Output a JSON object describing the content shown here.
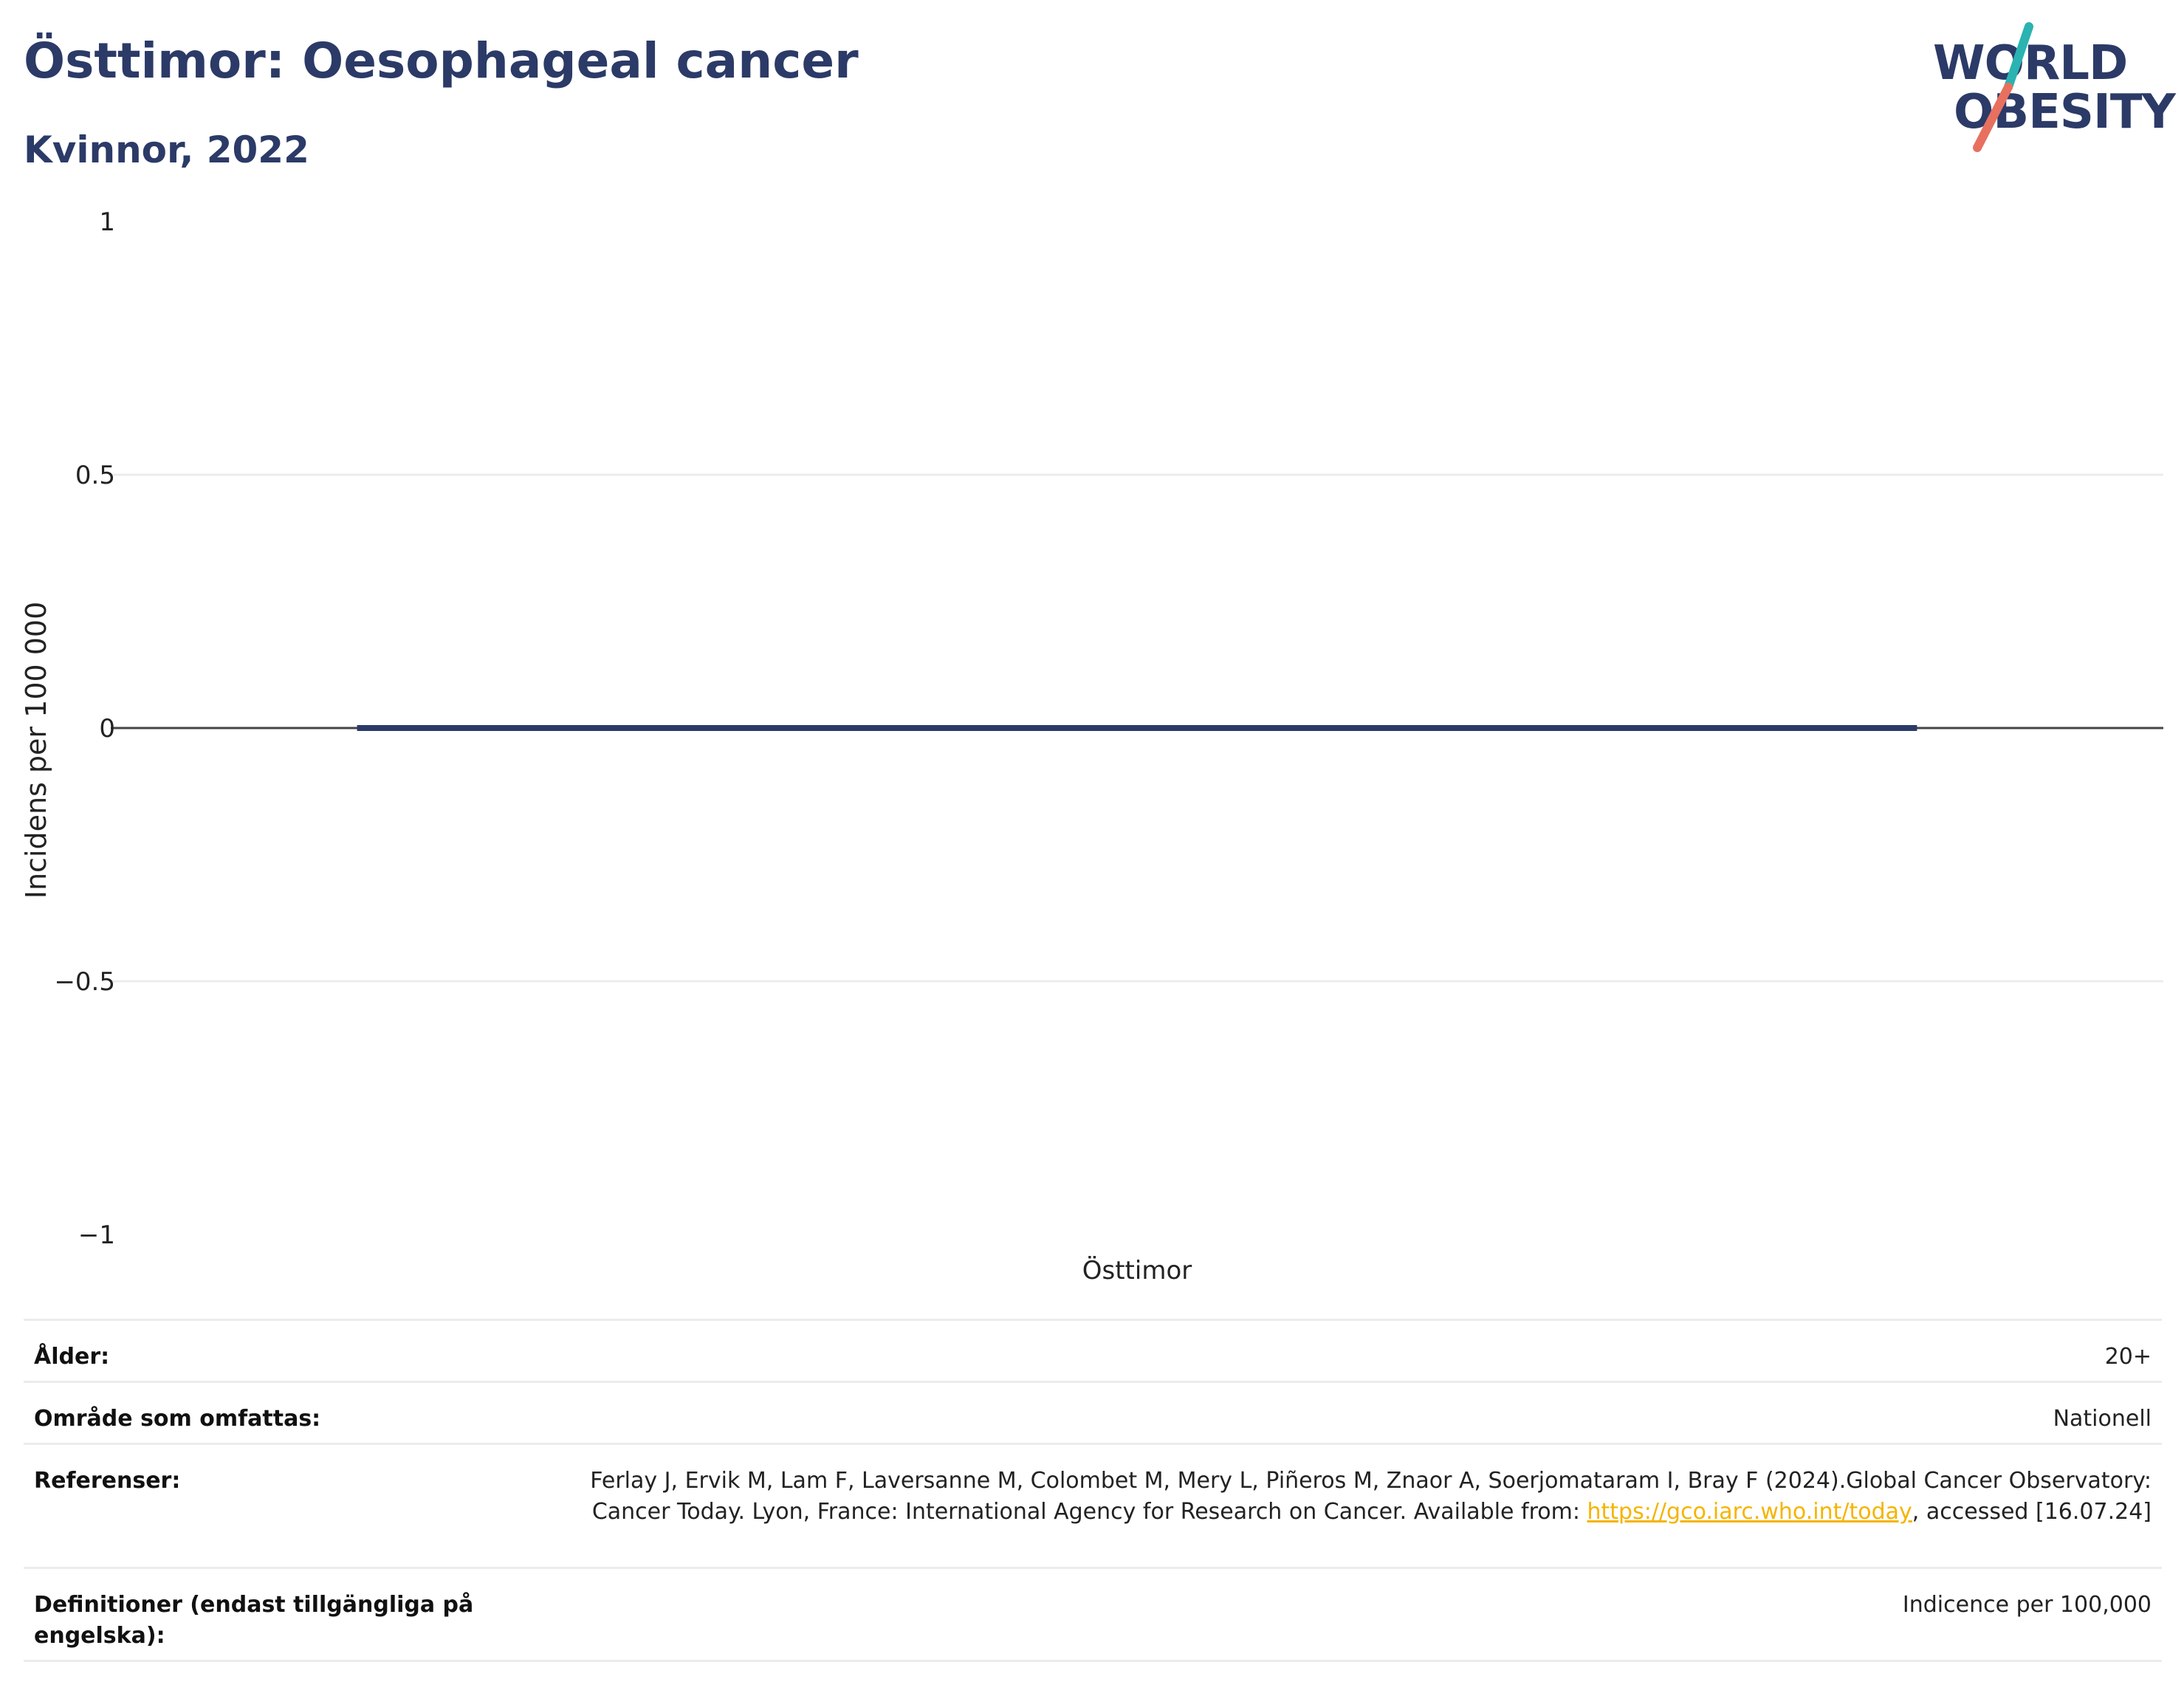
{
  "title": "Östtimor: Oesophageal cancer",
  "subtitle": "Kvinnor, 2022",
  "logo": {
    "line1": "WORLD",
    "line2": "OBESITY",
    "colors": {
      "navy": "#2b3a67",
      "teal": "#2ab3b1",
      "coral": "#e8705f"
    }
  },
  "chart_data": {
    "type": "bar",
    "categories": [
      "Östtimor"
    ],
    "series": [
      {
        "values": [
          0
        ]
      }
    ],
    "ylabel": "Incidens per 100 000",
    "xlabel": "",
    "ylim": [
      -1,
      1
    ],
    "yticks": [
      1,
      0.5,
      0,
      -0.5,
      -1
    ],
    "ytick_labels": [
      "1",
      "0.5",
      "0",
      "−0.5",
      "−1"
    ],
    "grid": true,
    "bar_color": "#2b3a67"
  },
  "meta": {
    "rows": [
      {
        "key": "Ålder:",
        "value": "20+"
      },
      {
        "key": "Område som omfattas:",
        "value": "Nationell"
      },
      {
        "key": "Referenser:",
        "value_before": "Ferlay J, Ervik M, Lam F, Laversanne M, Colombet M, Mery L, Piñeros M, Znaor A, Soerjomataram I, Bray F (2024).Global Cancer Observatory: Cancer Today. Lyon, France: International Agency for Research on Cancer. Available from: ",
        "link": "https://gco.iarc.who.int/today",
        "value_after": ", accessed [16.07.24]"
      },
      {
        "key": "Definitioner (endast tillgängliga på engelska):",
        "value": "Indicence per 100,000"
      }
    ]
  }
}
